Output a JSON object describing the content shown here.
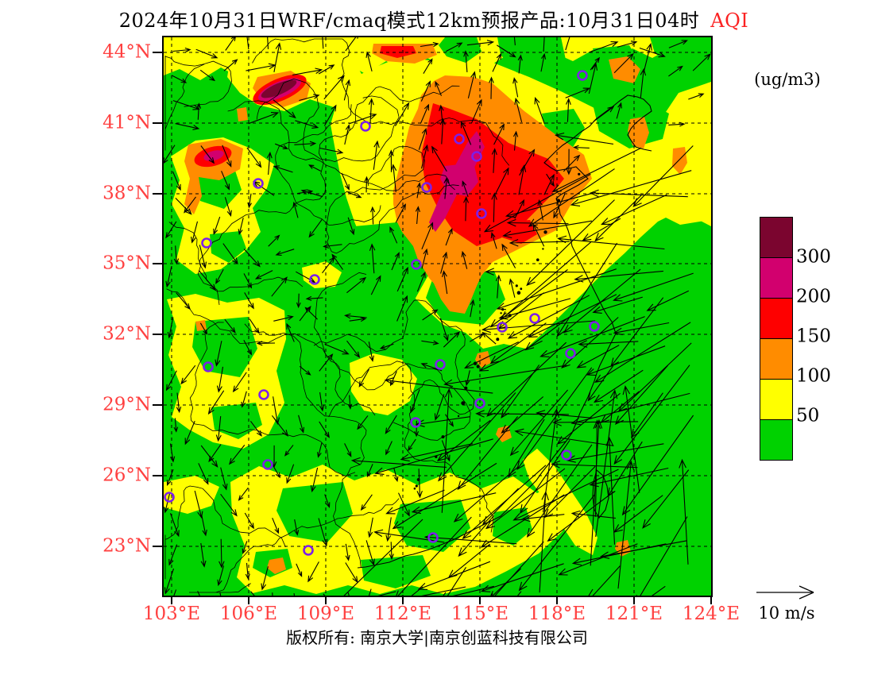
{
  "title": {
    "text": "2024年10月31日WRF/cmaq模式12km预报产品:10月31日04时",
    "highlight": "AQI",
    "highlight_color": "#fb2222"
  },
  "axes": {
    "lat_labels": [
      "44°N",
      "41°N",
      "38°N",
      "35°N",
      "32°N",
      "29°N",
      "26°N",
      "23°N"
    ],
    "lon_labels": [
      "103°E",
      "106°E",
      "109°E",
      "112°E",
      "115°E",
      "118°E",
      "121°E",
      "124°E"
    ],
    "label_color": "#ff4040"
  },
  "colorbar": {
    "units": "(ug/m3)",
    "tick_labels": [
      "300",
      "200",
      "150",
      "100",
      "50"
    ],
    "tick_values": [
      300,
      200,
      150,
      100,
      50
    ],
    "colors_top_to_bottom": [
      "#7b052f",
      "#d2006e",
      "#fe0000",
      "#ff8c00",
      "#ffff00",
      "#00d200"
    ],
    "quantity": "AQI"
  },
  "wind_scale": {
    "label": "10 m/s"
  },
  "footer": {
    "text": "版权所有: 南京大学|南京创蓝科技有限公司"
  },
  "map": {
    "background_color": "#00d200",
    "station_marker_color": "#7d1fe8",
    "stations": [
      [
        527,
        48
      ],
      [
        372,
        128
      ],
      [
        394,
        150
      ],
      [
        331,
        189
      ],
      [
        119,
        184
      ],
      [
        254,
        112
      ],
      [
        400,
        222
      ],
      [
        318,
        286
      ],
      [
        54,
        259
      ],
      [
        190,
        305
      ],
      [
        426,
        365
      ],
      [
        467,
        354
      ],
      [
        512,
        398
      ],
      [
        542,
        364
      ],
      [
        348,
        412
      ],
      [
        398,
        461
      ],
      [
        317,
        485
      ],
      [
        507,
        526
      ],
      [
        56,
        415
      ],
      [
        126,
        450
      ],
      [
        131,
        538
      ],
      [
        7,
        579
      ],
      [
        182,
        646
      ],
      [
        339,
        630
      ]
    ]
  }
}
